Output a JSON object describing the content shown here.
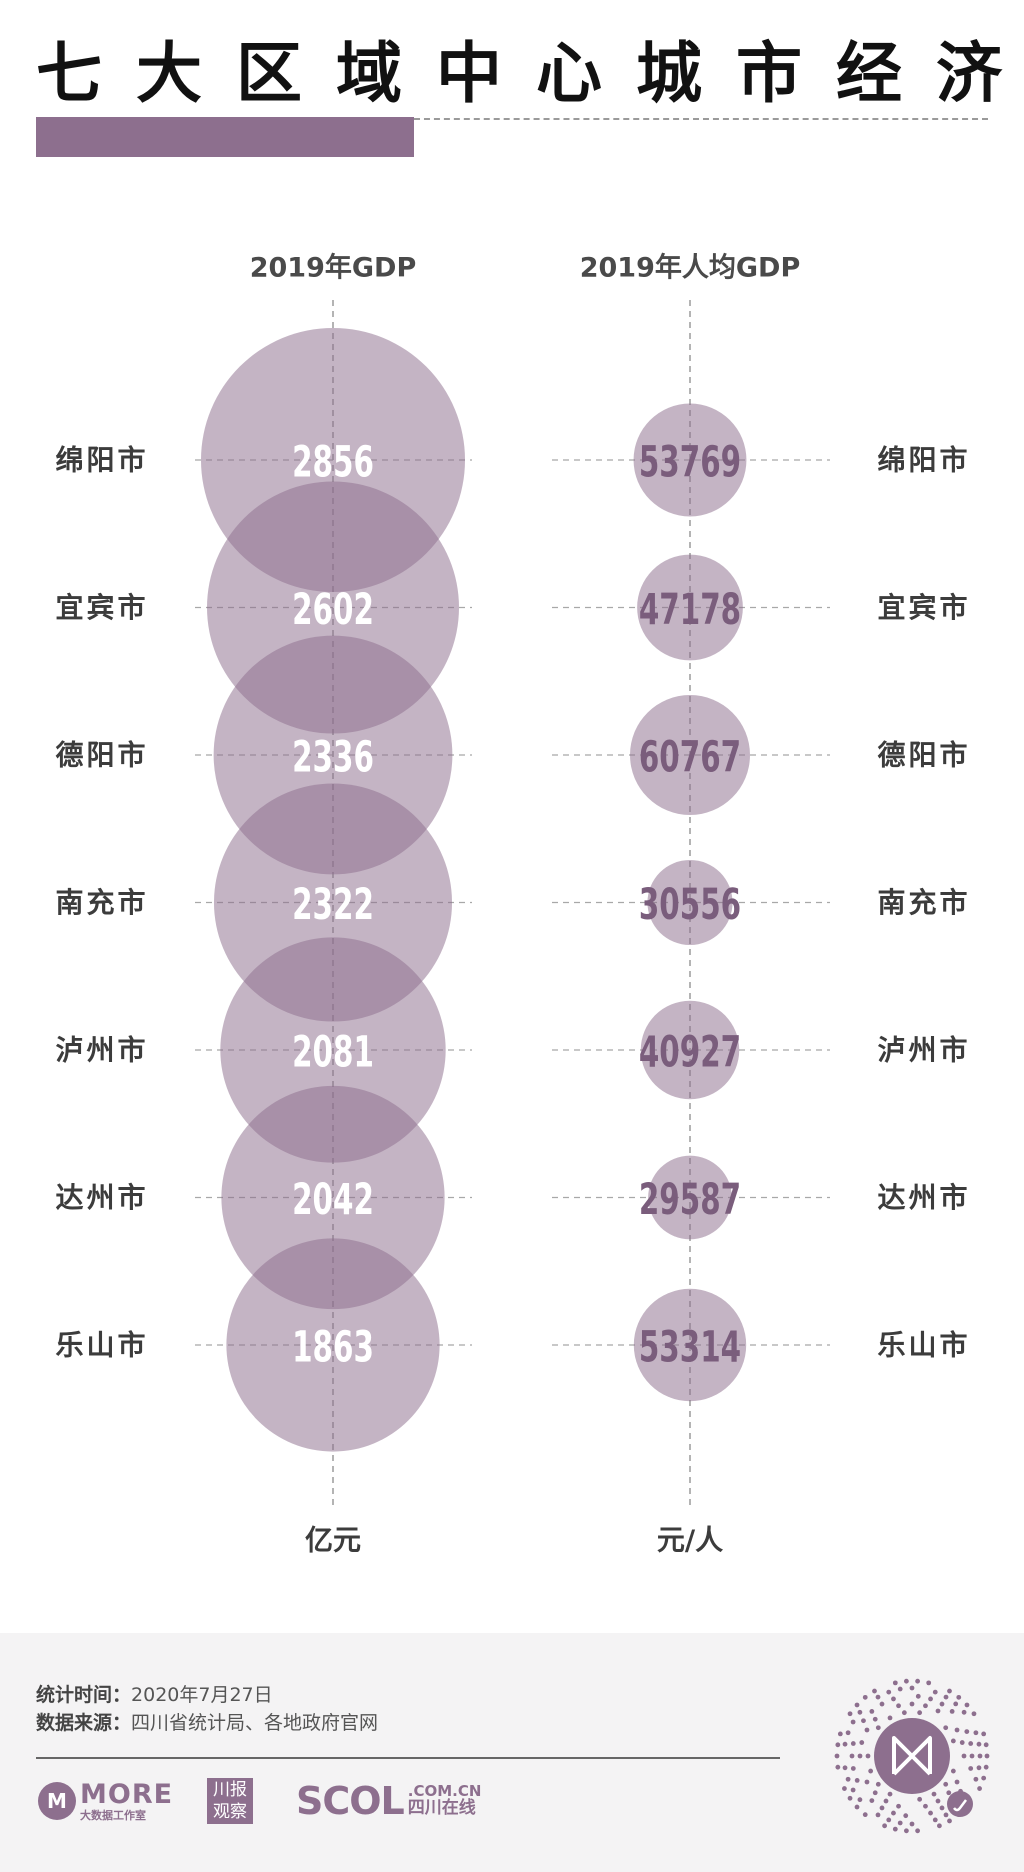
{
  "title": "七大区域中心城市经济",
  "chart_data": {
    "type": "bubble",
    "categories": [
      "绵阳市",
      "宜宾市",
      "德阳市",
      "南充市",
      "泸州市",
      "达州市",
      "乐山市"
    ],
    "series": [
      {
        "name": "2019年GDP",
        "unit": "亿元",
        "values": [
          2856,
          2602,
          2336,
          2322,
          2081,
          2042,
          1863
        ]
      },
      {
        "name": "2019年人均GDP",
        "unit": "元/人",
        "values": [
          53769,
          47178,
          60767,
          30556,
          40927,
          29587,
          53314
        ]
      }
    ],
    "colors": {
      "bubble": "#8d6f8e",
      "value_light": "#ffffff",
      "value_dark": "#7a5d7c"
    }
  },
  "footer": {
    "time_label": "统计时间：",
    "time_value": "2020年7月27日",
    "source_label": "数据来源：",
    "source_value": "四川省统计局、各地政府官网",
    "logo_more": "MORE",
    "logo_more_sub": "大数据工作室",
    "logo_chuan": [
      "川",
      "报",
      "观",
      "察"
    ],
    "logo_scol": "SCOL",
    "logo_scol_domain": ".COM.CN",
    "logo_scol_cn": "四川在线"
  },
  "qr_icon": "mini-program-code-icon"
}
